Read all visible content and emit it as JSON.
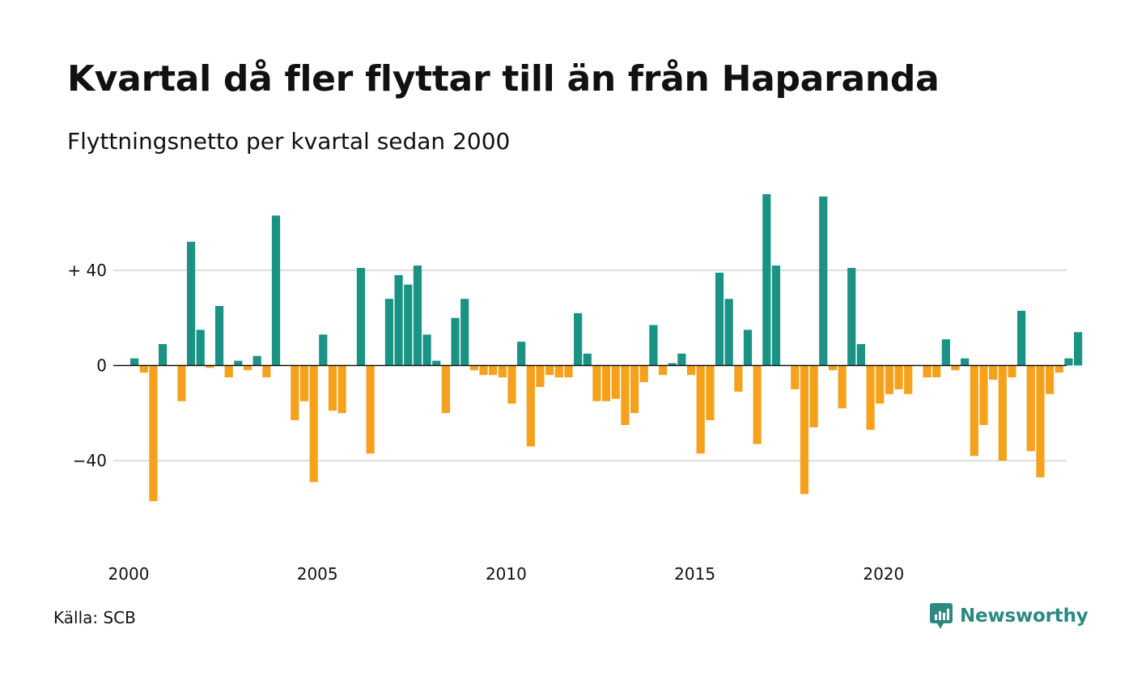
{
  "title": "Kvartal då fler flyttar till än från Haparanda",
  "subtitle": "Flyttningsnetto per kvartal sedan 2000",
  "source": "Källa: SCB",
  "logo": {
    "text": "Newsworthy",
    "icon": "newsworthy-logo-icon"
  },
  "colors": {
    "positive": "#1a9385",
    "negative": "#f5a11c",
    "grid": "#dddddd",
    "zero": "#111111"
  },
  "chart_data": {
    "type": "bar",
    "title": "Kvartal då fler flyttar till än från Haparanda",
    "subtitle": "Flyttningsnetto per kvartal sedan 2000",
    "xlabel": "",
    "ylabel": "",
    "ylim": [
      -75,
      72
    ],
    "yticks": [
      {
        "value": 40,
        "label": "+ 40"
      },
      {
        "value": 0,
        "label": "0"
      },
      {
        "value": -40,
        "label": "−40"
      }
    ],
    "xticks": [
      "2000",
      "2005",
      "2010",
      "2015",
      "2020"
    ],
    "grid": true,
    "legend": "none",
    "series": [
      {
        "start_year": 2000,
        "periods_per_year": 4,
        "values": [
          3,
          -3,
          -57,
          9,
          0,
          -15,
          52,
          15,
          -1,
          25,
          -5,
          2,
          -2,
          4,
          -5,
          63,
          0,
          -23,
          -15,
          -49,
          13,
          -19,
          -20,
          0,
          41,
          -37,
          0,
          28,
          38,
          34,
          42,
          13,
          2,
          -20,
          20,
          28,
          -2,
          -4,
          -4,
          -5,
          -16,
          10,
          -34,
          -9,
          -4,
          -5,
          -5,
          22,
          5,
          -15,
          -15,
          -14,
          -25,
          -20,
          -7,
          17,
          -4,
          1,
          5,
          -4,
          -37,
          -23,
          39,
          28,
          -11,
          15,
          -33,
          72,
          42,
          0,
          -10,
          -54,
          -26,
          71,
          -2,
          -18,
          41,
          9,
          -27,
          -16,
          -12,
          -10,
          -12,
          0,
          -5,
          -5,
          11,
          -2,
          3,
          -38,
          -25,
          -6,
          -40,
          -5,
          23,
          -36,
          -47,
          -12,
          -3,
          3,
          14
        ]
      }
    ]
  }
}
